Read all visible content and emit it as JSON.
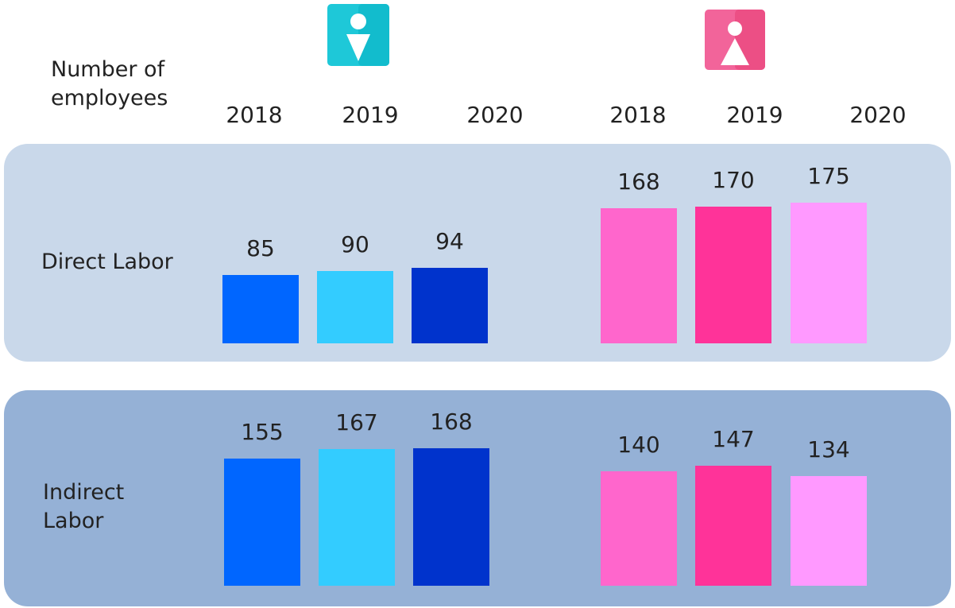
{
  "chart_data": {
    "type": "bar",
    "title": "Number of employees",
    "categories": [
      "2018",
      "2019",
      "2020"
    ],
    "groups": [
      {
        "colors": [
          "#0066ff",
          "#33ccff",
          "#0033cc"
        ]
      },
      {
        "colors": [
          "#ff66cc",
          "#ff3399",
          "#ff99ff"
        ]
      }
    ],
    "panels": [
      {
        "name": "Direct Labor",
        "values": [
          [
            85,
            90,
            94
          ],
          [
            168,
            170,
            175
          ]
        ]
      },
      {
        "name": "Indirect Labor",
        "values": [
          [
            155,
            167,
            168
          ],
          [
            140,
            147,
            134
          ]
        ]
      }
    ]
  }
}
